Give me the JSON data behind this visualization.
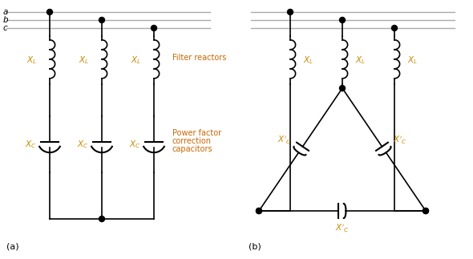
{
  "bg_color": "#ffffff",
  "line_color": "#000000",
  "bus_color": "#aaaaaa",
  "xl_color": "#cc8800",
  "xc_color": "#cc8800",
  "label_a": "a",
  "label_b": "b",
  "label_c": "c",
  "label_filter": "Filter reactors",
  "label_pf1": "Power factor",
  "label_pf2": "correction",
  "label_pf3": "capacitors",
  "label_a_fig": "(a)",
  "label_b_fig": "(b)",
  "fig_width": 5.9,
  "fig_height": 3.23,
  "dpi": 100
}
